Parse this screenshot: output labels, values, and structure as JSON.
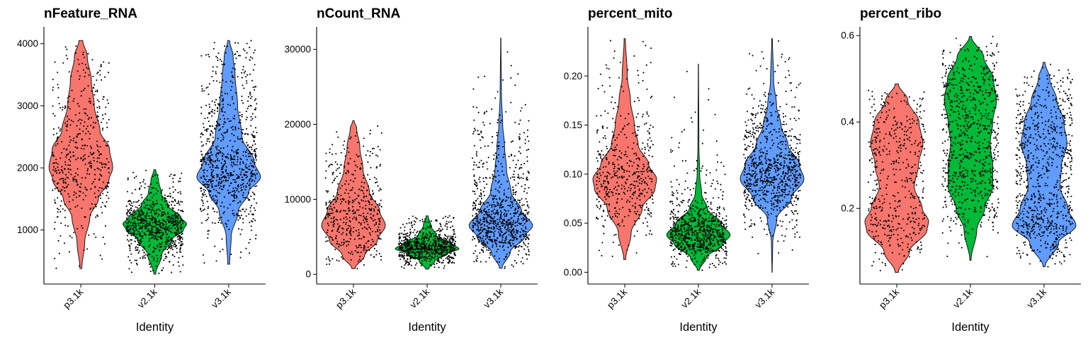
{
  "chart_data": [
    {
      "type": "violin",
      "title": "nFeature_RNA",
      "xlabel": "Identity",
      "ylabel": "",
      "ylim": [
        130,
        4270
      ],
      "yticks": [
        1000,
        2000,
        3000,
        4000
      ],
      "ytick_labels": [
        "1000",
        "2000",
        "3000",
        "4000"
      ],
      "categories": [
        "p3.1k",
        "v2.1k",
        "v3.1k"
      ],
      "colors": [
        "#F8766D",
        "#00BA38",
        "#619CFF"
      ],
      "groups": [
        {
          "name": "p3.1k",
          "min": 380,
          "max": 4050,
          "n_points": 480,
          "profile": [
            [
              380,
              0.03
            ],
            [
              800,
              0.12
            ],
            [
              1200,
              0.28
            ],
            [
              1500,
              0.55
            ],
            [
              1800,
              0.88
            ],
            [
              2000,
              1.0
            ],
            [
              2300,
              0.9
            ],
            [
              2600,
              0.6
            ],
            [
              3000,
              0.42
            ],
            [
              3400,
              0.33
            ],
            [
              3800,
              0.2
            ],
            [
              4050,
              0.06
            ]
          ]
        },
        {
          "name": "v2.1k",
          "min": 290,
          "max": 1970,
          "n_points": 780,
          "profile": [
            [
              290,
              0.03
            ],
            [
              600,
              0.22
            ],
            [
              850,
              0.55
            ],
            [
              1000,
              0.9
            ],
            [
              1100,
              1.0
            ],
            [
              1200,
              0.82
            ],
            [
              1400,
              0.42
            ],
            [
              1600,
              0.2
            ],
            [
              1800,
              0.12
            ],
            [
              1970,
              0.03
            ]
          ]
        },
        {
          "name": "v3.1k",
          "min": 450,
          "max": 4050,
          "n_points": 850,
          "profile": [
            [
              450,
              0.03
            ],
            [
              900,
              0.08
            ],
            [
              1300,
              0.3
            ],
            [
              1600,
              0.62
            ],
            [
              1850,
              1.0
            ],
            [
              2100,
              0.8
            ],
            [
              2500,
              0.42
            ],
            [
              3000,
              0.28
            ],
            [
              3500,
              0.2
            ],
            [
              3800,
              0.14
            ],
            [
              4050,
              0.03
            ]
          ]
        }
      ]
    },
    {
      "type": "violin",
      "title": "nCount_RNA",
      "xlabel": "Identity",
      "ylabel": "",
      "ylim": [
        -1300,
        33000
      ],
      "yticks": [
        0,
        10000,
        20000,
        30000
      ],
      "ytick_labels": [
        "0",
        "10000",
        "20000",
        "30000"
      ],
      "categories": [
        "p3.1k",
        "v2.1k",
        "v3.1k"
      ],
      "colors": [
        "#F8766D",
        "#00BA38",
        "#619CFF"
      ],
      "groups": [
        {
          "name": "p3.1k",
          "min": 750,
          "max": 20500,
          "n_points": 480,
          "profile": [
            [
              750,
              0.05
            ],
            [
              2500,
              0.35
            ],
            [
              4500,
              0.75
            ],
            [
              6500,
              1.0
            ],
            [
              8500,
              0.82
            ],
            [
              11000,
              0.5
            ],
            [
              14000,
              0.3
            ],
            [
              17000,
              0.2
            ],
            [
              19500,
              0.1
            ],
            [
              20500,
              0.02
            ]
          ]
        },
        {
          "name": "v2.1k",
          "min": 700,
          "max": 7800,
          "n_points": 780,
          "profile": [
            [
              700,
              0.05
            ],
            [
              1800,
              0.25
            ],
            [
              2800,
              0.65
            ],
            [
              3400,
              1.0
            ],
            [
              4200,
              0.7
            ],
            [
              5200,
              0.28
            ],
            [
              6500,
              0.12
            ],
            [
              7800,
              0.03
            ]
          ]
        },
        {
          "name": "v3.1k",
          "min": 800,
          "max": 31500,
          "n_points": 850,
          "profile": [
            [
              800,
              0.04
            ],
            [
              3000,
              0.3
            ],
            [
              5000,
              0.75
            ],
            [
              6500,
              1.0
            ],
            [
              8500,
              0.65
            ],
            [
              11000,
              0.32
            ],
            [
              14000,
              0.18
            ],
            [
              17000,
              0.12
            ],
            [
              20000,
              0.06
            ],
            [
              24000,
              0.02
            ],
            [
              31500,
              0.005
            ]
          ]
        }
      ]
    },
    {
      "type": "violin",
      "title": "percent_mito",
      "xlabel": "Identity",
      "ylabel": "",
      "ylim": [
        -0.012,
        0.25
      ],
      "yticks": [
        0.0,
        0.05,
        0.1,
        0.15,
        0.2
      ],
      "ytick_labels": [
        "0.00",
        "0.05",
        "0.10",
        "0.15",
        "0.20"
      ],
      "categories": [
        "p3.1k",
        "v2.1k",
        "v3.1k"
      ],
      "colors": [
        "#F8766D",
        "#00BA38",
        "#619CFF"
      ],
      "groups": [
        {
          "name": "p3.1k",
          "min": 0.013,
          "max": 0.238,
          "n_points": 480,
          "profile": [
            [
              0.013,
              0.03
            ],
            [
              0.04,
              0.2
            ],
            [
              0.065,
              0.55
            ],
            [
              0.085,
              0.95
            ],
            [
              0.095,
              1.0
            ],
            [
              0.11,
              0.75
            ],
            [
              0.13,
              0.42
            ],
            [
              0.15,
              0.3
            ],
            [
              0.175,
              0.18
            ],
            [
              0.2,
              0.08
            ],
            [
              0.238,
              0.02
            ]
          ]
        },
        {
          "name": "v2.1k",
          "min": 0.002,
          "max": 0.212,
          "n_points": 780,
          "profile": [
            [
              0.002,
              0.03
            ],
            [
              0.015,
              0.25
            ],
            [
              0.028,
              0.75
            ],
            [
              0.038,
              1.0
            ],
            [
              0.05,
              0.7
            ],
            [
              0.065,
              0.28
            ],
            [
              0.08,
              0.1
            ],
            [
              0.1,
              0.04
            ],
            [
              0.13,
              0.015
            ],
            [
              0.212,
              0.004
            ]
          ]
        },
        {
          "name": "v3.1k",
          "min": 0.0,
          "max": 0.238,
          "n_points": 850,
          "profile": [
            [
              0.0,
              0.004
            ],
            [
              0.03,
              0.02
            ],
            [
              0.055,
              0.15
            ],
            [
              0.075,
              0.6
            ],
            [
              0.095,
              1.0
            ],
            [
              0.11,
              0.85
            ],
            [
              0.13,
              0.5
            ],
            [
              0.15,
              0.28
            ],
            [
              0.17,
              0.14
            ],
            [
              0.195,
              0.05
            ],
            [
              0.238,
              0.01
            ]
          ]
        }
      ]
    },
    {
      "type": "violin",
      "title": "percent_ribo",
      "xlabel": "Identity",
      "ylabel": "",
      "ylim": [
        0.025,
        0.62
      ],
      "yticks": [
        0.2,
        0.4,
        0.6
      ],
      "ytick_labels": [
        "0.2",
        "0.4",
        "0.6"
      ],
      "categories": [
        "p3.1k",
        "v2.1k",
        "v3.1k"
      ],
      "colors": [
        "#F8766D",
        "#00BA38",
        "#619CFF"
      ],
      "groups": [
        {
          "name": "p3.1k",
          "min": 0.052,
          "max": 0.488,
          "n_points": 480,
          "profile": [
            [
              0.052,
              0.05
            ],
            [
              0.1,
              0.4
            ],
            [
              0.15,
              0.95
            ],
            [
              0.17,
              1.0
            ],
            [
              0.2,
              0.8
            ],
            [
              0.25,
              0.55
            ],
            [
              0.3,
              0.68
            ],
            [
              0.35,
              0.82
            ],
            [
              0.4,
              0.7
            ],
            [
              0.45,
              0.35
            ],
            [
              0.488,
              0.05
            ]
          ]
        },
        {
          "name": "v2.1k",
          "min": 0.08,
          "max": 0.598,
          "n_points": 780,
          "profile": [
            [
              0.08,
              0.02
            ],
            [
              0.15,
              0.2
            ],
            [
              0.2,
              0.45
            ],
            [
              0.25,
              0.7
            ],
            [
              0.3,
              0.7
            ],
            [
              0.35,
              0.62
            ],
            [
              0.4,
              0.7
            ],
            [
              0.45,
              0.82
            ],
            [
              0.5,
              0.72
            ],
            [
              0.55,
              0.42
            ],
            [
              0.598,
              0.03
            ]
          ]
        },
        {
          "name": "v3.1k",
          "min": 0.065,
          "max": 0.538,
          "n_points": 850,
          "profile": [
            [
              0.065,
              0.03
            ],
            [
              0.12,
              0.45
            ],
            [
              0.16,
              1.0
            ],
            [
              0.2,
              0.75
            ],
            [
              0.25,
              0.5
            ],
            [
              0.3,
              0.55
            ],
            [
              0.35,
              0.72
            ],
            [
              0.4,
              0.62
            ],
            [
              0.45,
              0.4
            ],
            [
              0.5,
              0.18
            ],
            [
              0.538,
              0.03
            ]
          ]
        }
      ]
    }
  ]
}
